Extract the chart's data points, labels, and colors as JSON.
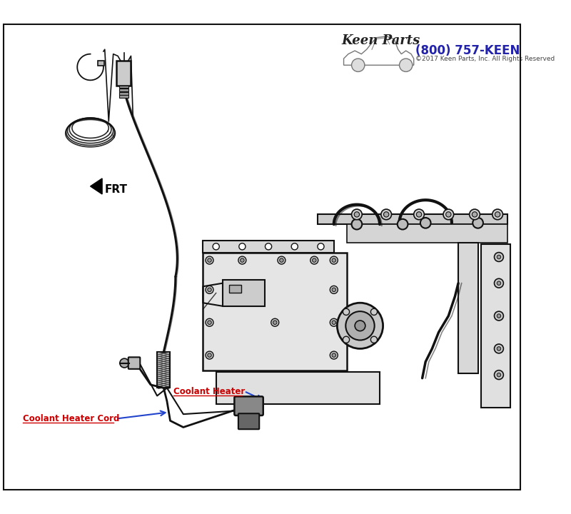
{
  "background_color": "#ffffff",
  "border_color": "#000000",
  "keen_parts_phone": "(800) 757-KEEN",
  "keen_parts_copyright": "©2017 Keen Parts, Inc. All Rights Reserved",
  "phone_color": "#2222aa",
  "copyright_color": "#444444",
  "label1_text": "Coolant Heater Cord",
  "label1_color": "#cc0000",
  "label2_text": "Coolant Heater",
  "label2_color": "#cc0000",
  "arrow_color": "#2244cc",
  "frt_text": "FRT",
  "frt_text_color": "#000000",
  "line_color": "#111111"
}
